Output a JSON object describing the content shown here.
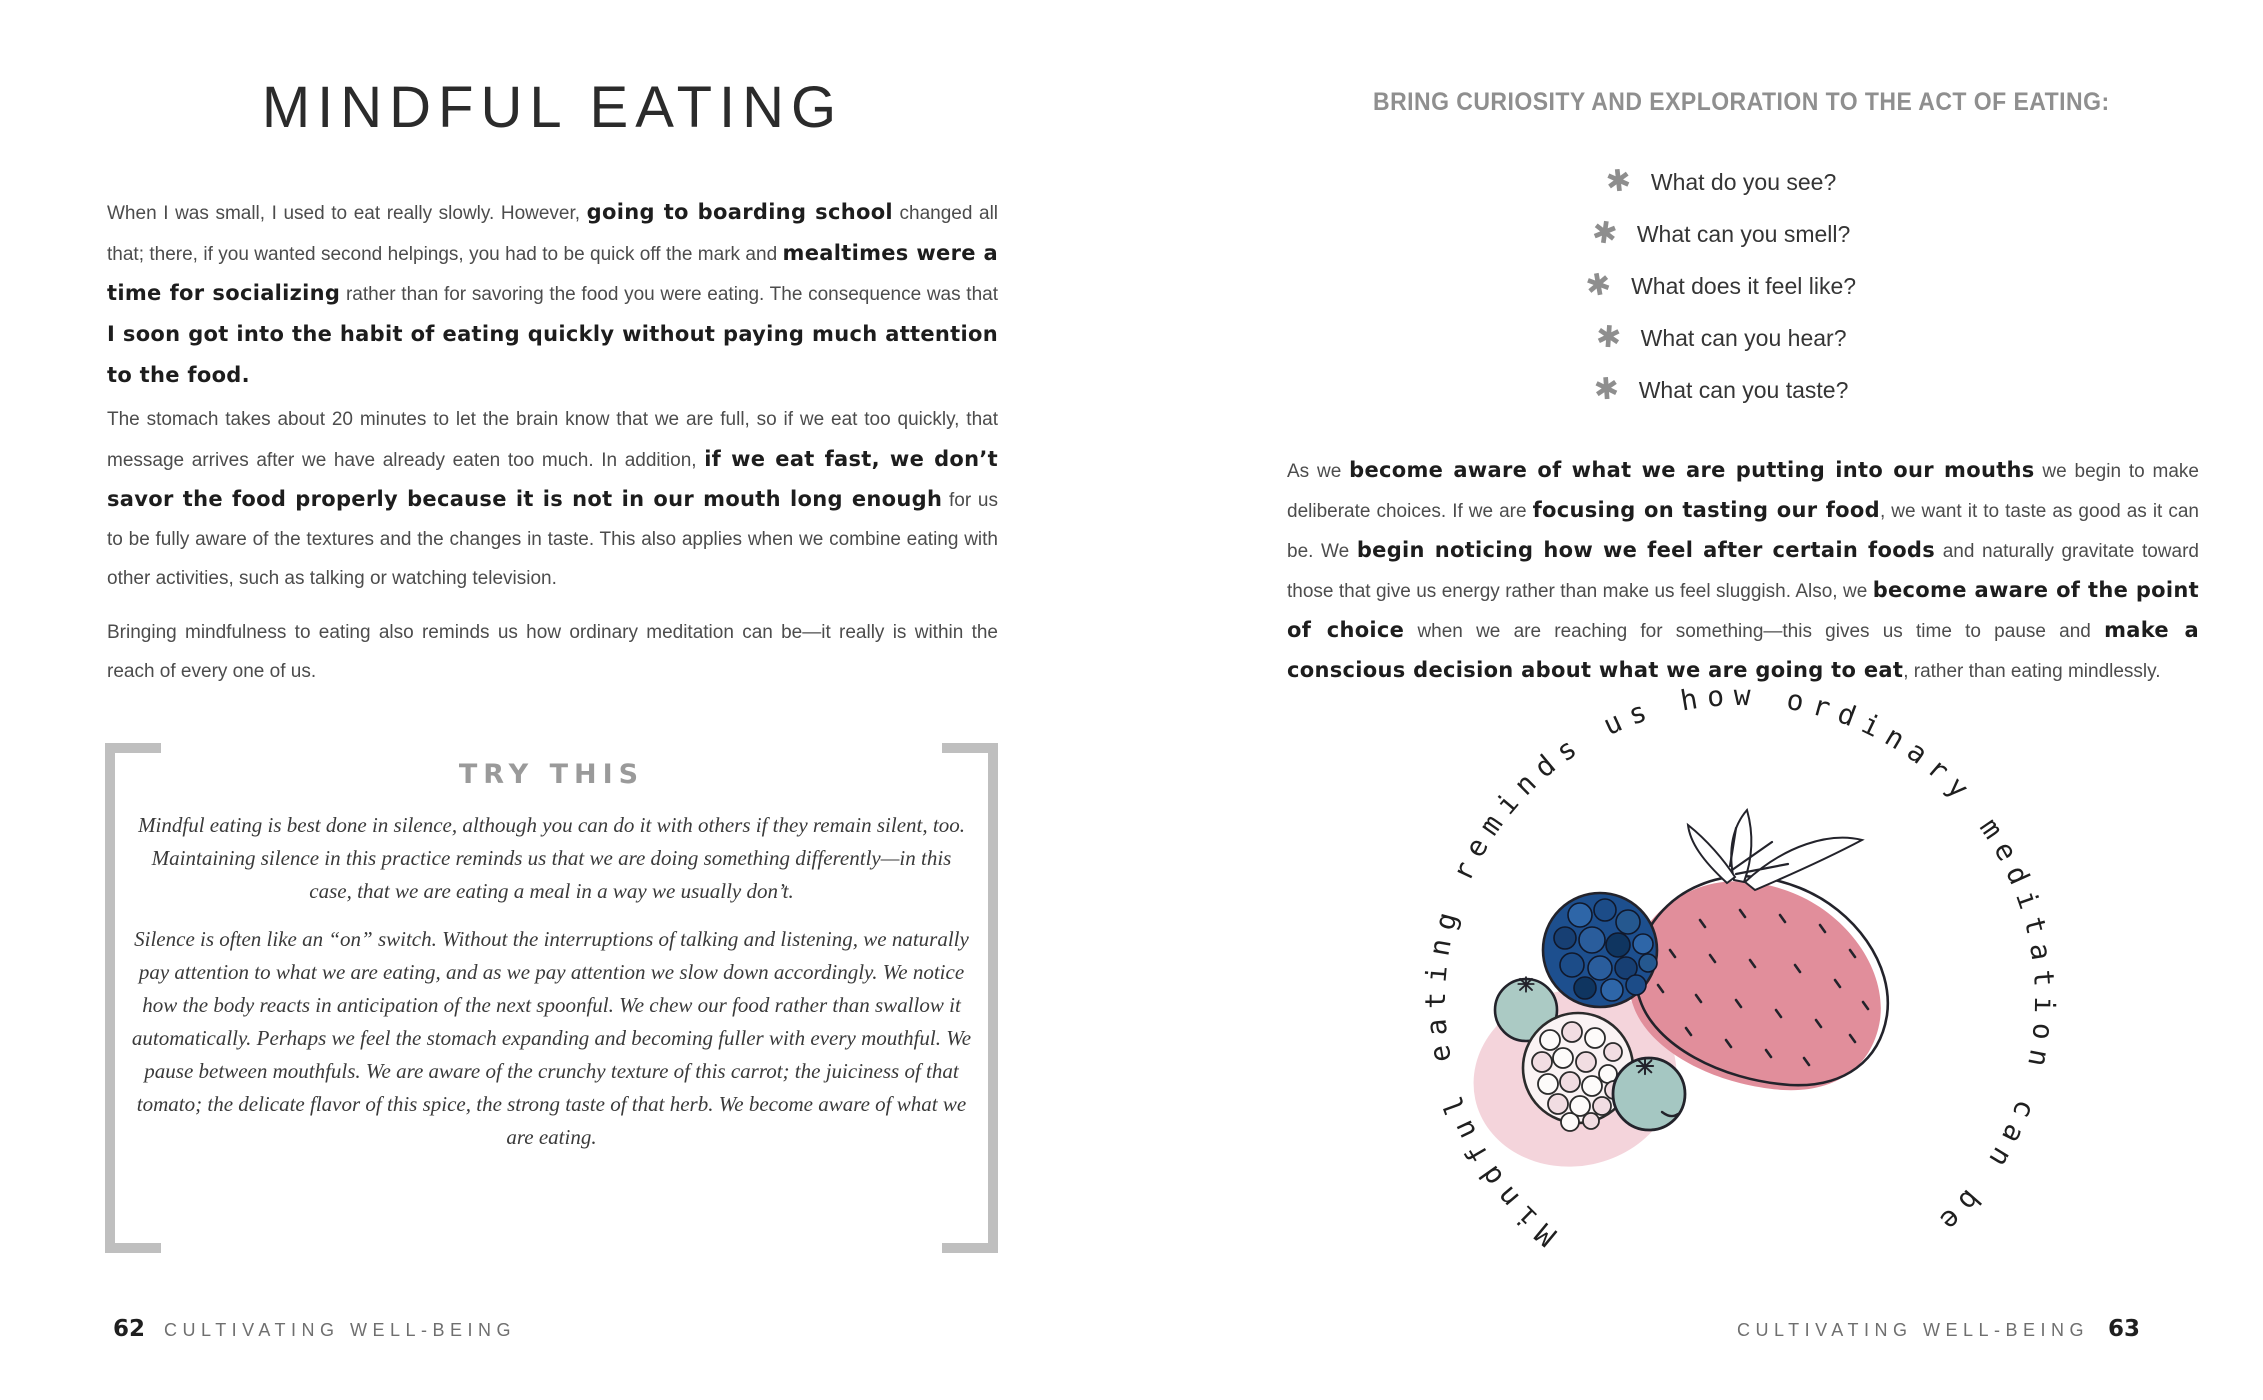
{
  "colors": {
    "page_bg": "#ffffff",
    "body_text": "#4c4c4c",
    "emphasis_text": "#1d1d1d",
    "title_text": "#2b2b2b",
    "muted_heading": "#9a9a9a",
    "bracket_gray": "#bfbfbf",
    "footer_text": "#6f6f6f",
    "asterisk_gray": "#8e8e8e",
    "strawberry_pink": "#e18e9b",
    "pink_wash": "#f2ccd5",
    "berry_blue": "#2a5d9c",
    "blueberry_teal": "#abcac4",
    "ink_outline": "#23232b"
  },
  "left_page": {
    "title": "MINDFUL EATING",
    "paragraphs": [
      {
        "segments": [
          {
            "t": "When I was small, I used to eat really slowly. However, ",
            "b": false
          },
          {
            "t": "going to boarding school",
            "b": true
          },
          {
            "t": " changed all that; there, if you wanted second helpings, you had to be quick off the mark and ",
            "b": false
          },
          {
            "t": "mealtimes were a time for socializing",
            "b": true
          },
          {
            "t": " rather than for savoring the food you were eating. The consequence was that ",
            "b": false
          },
          {
            "t": "I soon got into the habit of eating quickly without paying much attention to the food.",
            "b": true
          }
        ]
      },
      {
        "segments": [
          {
            "t": "The stomach takes about 20 minutes to let the brain know that we are full, so if we eat too quickly, that message arrives after we have already eaten too much. In addition, ",
            "b": false
          },
          {
            "t": "if we eat fast, we don’t savor the food properly because it is not in our mouth long enough",
            "b": true
          },
          {
            "t": " for us to be fully aware of the textures and the changes in taste. This also applies when we combine eating with other activities, such as talking or watching television.",
            "b": false
          }
        ]
      },
      {
        "segments": [
          {
            "t": "Bringing mindfulness to eating also reminds us how ordinary meditation can be—it really is within the reach of every one of us.",
            "b": false
          }
        ]
      }
    ],
    "try_this": {
      "heading": "TRY THIS",
      "paragraphs": [
        "Mindful eating is best done in silence, although you can do it with others if they remain silent, too. Maintaining silence in this practice reminds us that we are doing something differently—in this case, that we are eating a meal in a way we usually don’t.",
        "Silence is often like an “on” switch. Without the interruptions of talking and listening, we naturally pay attention to what we are eating, and as we pay attention we slow down accordingly. We notice how the body reacts in anticipation of the next spoonful. We chew our food rather than swallow it automatically. Perhaps we feel the stomach expanding and becoming fuller with every mouthful. We pause between mouthfuls. We are aware of the crunchy texture of this carrot; the juiciness of that tomato; the delicate flavor of this spice, the strong taste of that herb. We become aware of what we are eating."
      ]
    },
    "footer": {
      "page_number": "62",
      "label": "CULTIVATING WELL-BEING"
    }
  },
  "right_page": {
    "header": "BRING CURIOSITY AND EXPLORATION TO THE ACT OF EATING:",
    "bullet_icon": "✱",
    "questions": [
      "What do you see?",
      "What can you smell?",
      "What does it feel like?",
      "What can you hear?",
      "What can you taste?"
    ],
    "paragraph": {
      "segments": [
        {
          "t": "As we ",
          "b": false
        },
        {
          "t": "become aware of what we are putting into our mouths",
          "b": true
        },
        {
          "t": " we begin to make deliberate choices. If we are ",
          "b": false
        },
        {
          "t": "focusing on tasting our food",
          "b": true
        },
        {
          "t": ", we want it to taste as good as it can be. We ",
          "b": false
        },
        {
          "t": "begin noticing how we feel after certain foods",
          "b": true
        },
        {
          "t": " and naturally gravitate toward those that give us energy rather than make us feel sluggish. Also, we ",
          "b": false
        },
        {
          "t": "become aware of the point of choice",
          "b": true
        },
        {
          "t": " when we are reaching for something—this gives us time to pause and ",
          "b": false
        },
        {
          "t": "make a conscious decision about what we are going to eat",
          "b": true
        },
        {
          "t": ", rather than eating mindlessly.",
          "b": false
        }
      ]
    },
    "circular_text": "Mindful eating reminds us how ordinary meditation can be",
    "footer": {
      "label": "CULTIVATING WELL-BEING",
      "page_number": "63"
    }
  }
}
